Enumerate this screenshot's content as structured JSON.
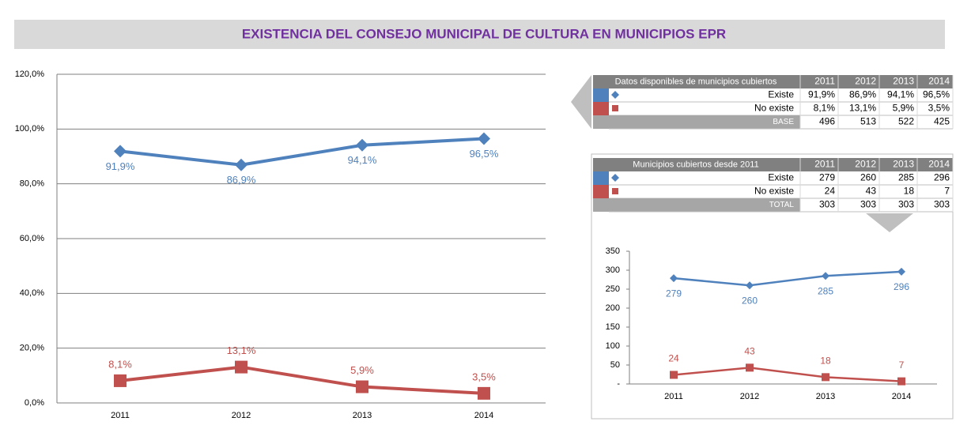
{
  "title": "EXISTENCIA DEL CONSEJO MUNICIPAL DE CULTURA EN MUNICIPIOS EPR",
  "chart_data": [
    {
      "type": "line",
      "categories": [
        "2011",
        "2012",
        "2013",
        "2014"
      ],
      "series": [
        {
          "color": "#4f81bd",
          "marker": "diamond",
          "values": [
            91.9,
            86.9,
            94.1,
            96.5
          ],
          "value_labels": [
            "91,9%",
            "86,9%",
            "94,1%",
            "96,5%"
          ]
        },
        {
          "color": "#c0504d",
          "marker": "square",
          "values": [
            8.1,
            13.1,
            5.9,
            3.5
          ],
          "value_labels": [
            "8,1%",
            "13,1%",
            "5,9%",
            "3,5%"
          ]
        }
      ],
      "ylim": [
        0,
        120
      ],
      "yticks": [
        {
          "value": 0,
          "label": "0,0%"
        },
        {
          "value": 20,
          "label": "20,0%"
        },
        {
          "value": 40,
          "label": "40,0%"
        },
        {
          "value": 60,
          "label": "60,0%"
        },
        {
          "value": 80,
          "label": "80,0%"
        },
        {
          "value": 100,
          "label": "100,0%"
        },
        {
          "value": 120,
          "label": "120,0%"
        }
      ],
      "grid": true
    },
    {
      "type": "line",
      "categories": [
        "2011",
        "2012",
        "2013",
        "2014"
      ],
      "series": [
        {
          "color": "#4f81bd",
          "marker": "diamond",
          "values": [
            279,
            260,
            285,
            296
          ]
        },
        {
          "color": "#c0504d",
          "marker": "square",
          "values": [
            24,
            43,
            18,
            7
          ]
        }
      ],
      "ylim": [
        0,
        350
      ],
      "yticks": [
        {
          "value": 0,
          "label": "-"
        },
        50,
        100,
        150,
        200,
        250,
        300,
        350
      ],
      "grid": false
    }
  ],
  "tables": [
    {
      "header": "Datos disponibles de municipios cubiertos",
      "columns": [
        "2011",
        "2012",
        "2013",
        "2014"
      ],
      "rows": [
        {
          "label": "Existe",
          "cells": [
            "91,9%",
            "86,9%",
            "94,1%",
            "96,5%"
          ]
        },
        {
          "label": "No existe",
          "cells": [
            "8,1%",
            "13,1%",
            "5,9%",
            "3,5%"
          ]
        },
        {
          "label": "BASE",
          "cells": [
            "496",
            "513",
            "522",
            "425"
          ]
        }
      ]
    },
    {
      "header": "Municipios cubiertos desde 2011",
      "columns": [
        "2011",
        "2012",
        "2013",
        "2014"
      ],
      "rows": [
        {
          "label": "Existe",
          "cells": [
            "279",
            "260",
            "285",
            "296"
          ]
        },
        {
          "label": "No existe",
          "cells": [
            "24",
            "43",
            "18",
            "7"
          ]
        },
        {
          "label": "TOTAL",
          "cells": [
            "303",
            "303",
            "303",
            "303"
          ]
        }
      ]
    }
  ]
}
